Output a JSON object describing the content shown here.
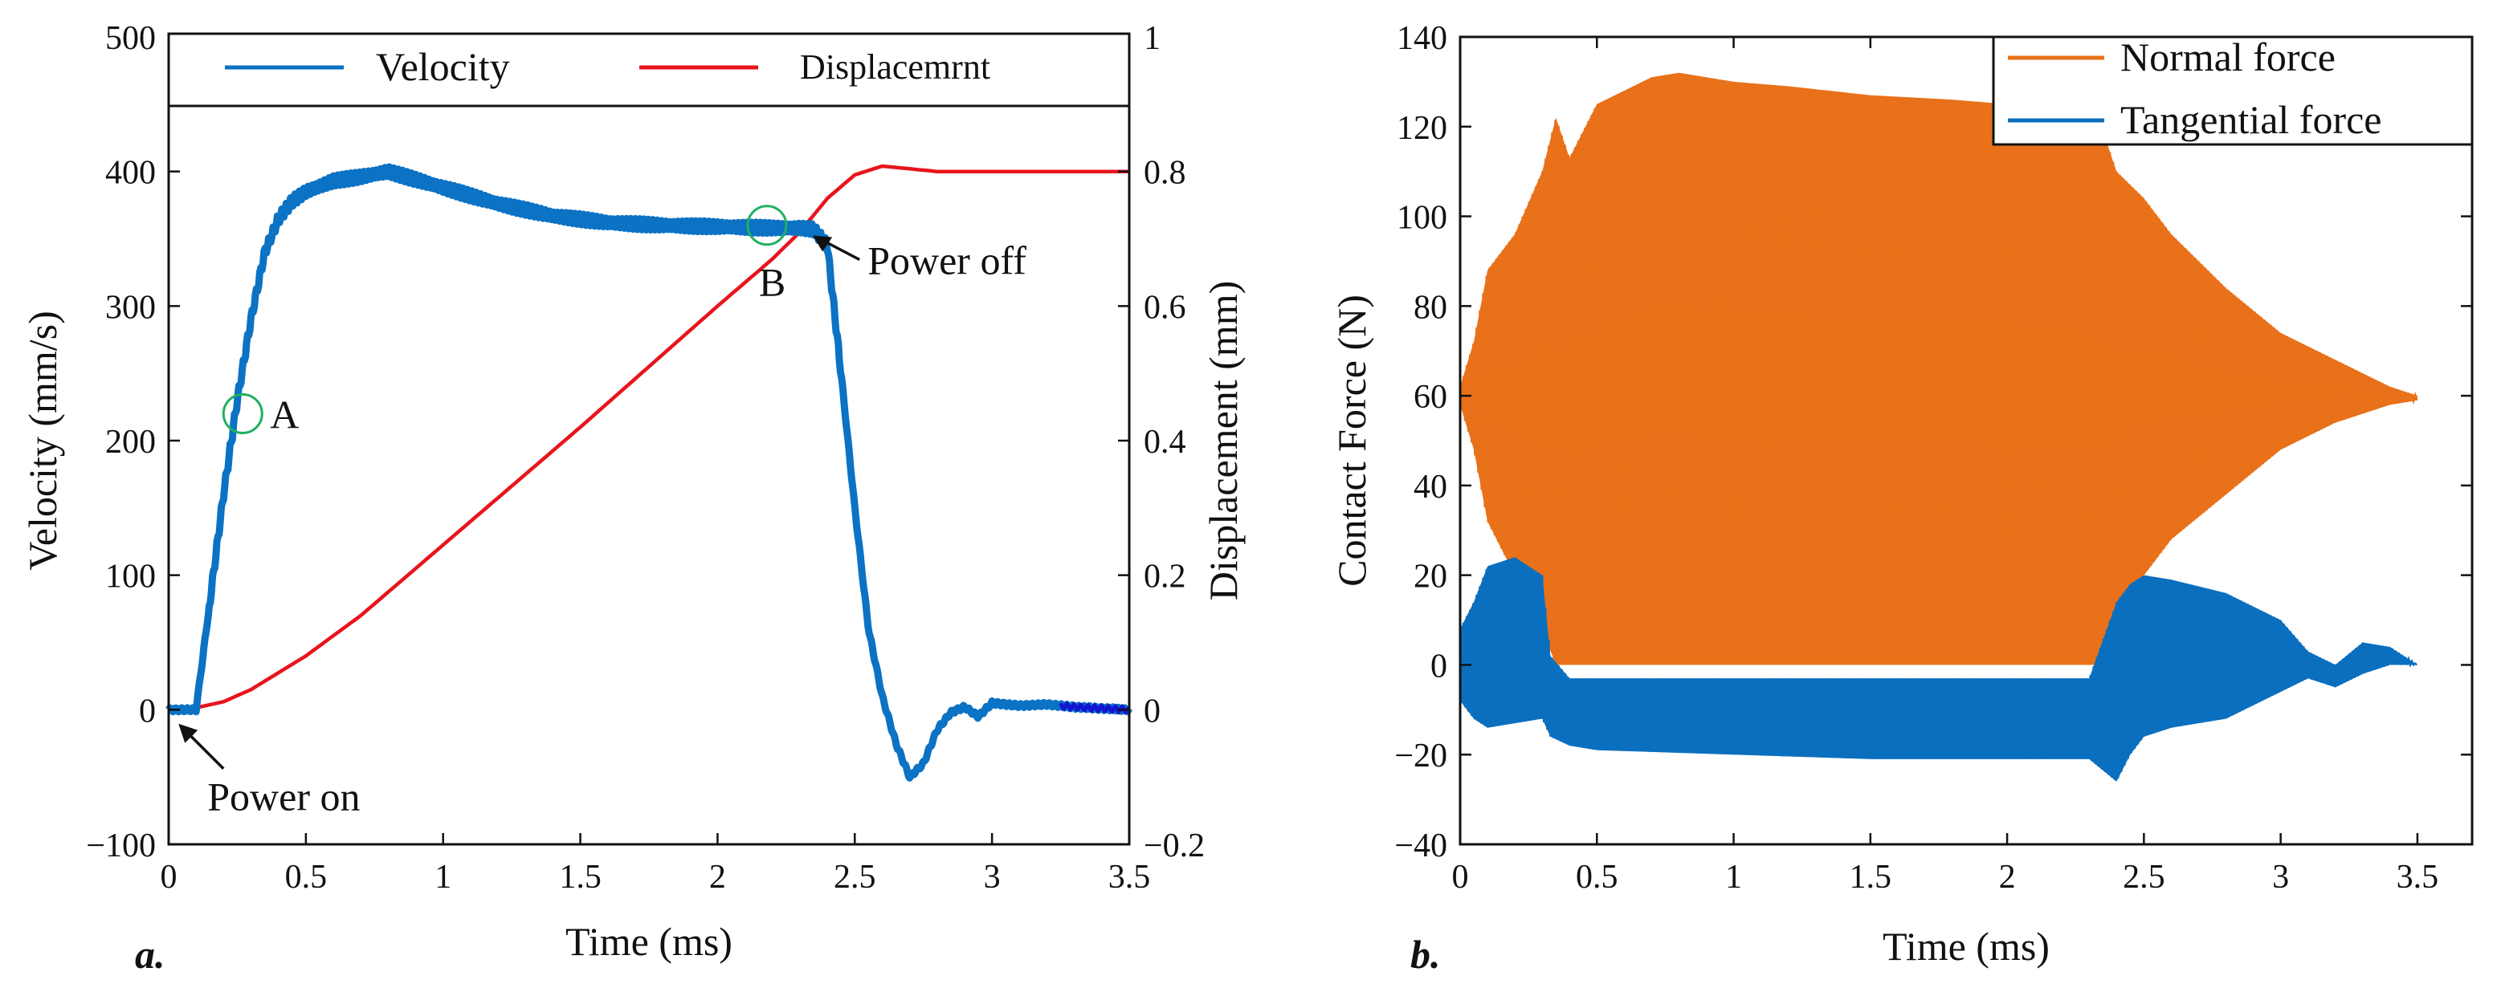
{
  "colors": {
    "velocity": "#0b72c4",
    "displacement": "#e8141c",
    "velocity_tail": "#1414d2",
    "normal_force": "#e8711a",
    "tangential_force": "#0b6fbf",
    "marker": "#1fb060",
    "axis": "#111111"
  },
  "chart_data": [
    {
      "type": "line",
      "panel_label": "a.",
      "xlabel": "Time (ms)",
      "ylabel_left": "Velocity (mm/s)",
      "ylabel_right": "Displacement (mm)",
      "xlim": [
        0,
        3.5
      ],
      "ylim_left": [
        -100,
        500
      ],
      "ylim_right": [
        -0.2,
        1.0
      ],
      "x_ticks": [
        "0",
        "0.5",
        "1",
        "1.5",
        "2",
        "2.5",
        "3",
        "3.5"
      ],
      "y_left_ticks": [
        "−100",
        "0",
        "100",
        "200",
        "300",
        "400",
        "500"
      ],
      "y_right_ticks": [
        "−0.2",
        "0",
        "0.2",
        "0.4",
        "0.6",
        "0.8",
        "1"
      ],
      "legend_position": "top",
      "series": [
        {
          "name": "Velocity",
          "axis": "left",
          "x": [
            0,
            0.1,
            0.15,
            0.2,
            0.25,
            0.3,
            0.35,
            0.4,
            0.45,
            0.5,
            0.6,
            0.7,
            0.8,
            0.9,
            1.0,
            1.2,
            1.4,
            1.6,
            1.8,
            2.0,
            2.2,
            2.3,
            2.35,
            2.4,
            2.45,
            2.5,
            2.55,
            2.6,
            2.65,
            2.7,
            2.75,
            2.8,
            2.85,
            2.9,
            2.95,
            3.0,
            3.1,
            3.2,
            3.3,
            3.4,
            3.5
          ],
          "values": [
            0,
            0,
            80,
            160,
            230,
            290,
            340,
            365,
            378,
            385,
            393,
            396,
            400,
            394,
            388,
            376,
            367,
            362,
            360,
            359,
            358,
            358,
            357,
            345,
            250,
            150,
            60,
            10,
            -25,
            -50,
            -40,
            -15,
            -2,
            2,
            -5,
            5,
            3,
            4,
            2,
            1,
            0
          ]
        },
        {
          "name": "Displacemrnt",
          "axis": "right",
          "x": [
            0,
            0.1,
            0.2,
            0.3,
            0.4,
            0.5,
            0.7,
            1.0,
            1.5,
            2.0,
            2.2,
            2.3,
            2.4,
            2.5,
            2.6,
            2.8,
            3.0,
            3.5
          ],
          "values": [
            0,
            0.003,
            0.012,
            0.03,
            0.055,
            0.08,
            0.14,
            0.245,
            0.42,
            0.6,
            0.67,
            0.71,
            0.76,
            0.795,
            0.808,
            0.8,
            0.8,
            0.8
          ]
        }
      ],
      "annotations": [
        {
          "text": "A",
          "x": 0.27,
          "y": 220
        },
        {
          "text": "B",
          "x": 2.18,
          "y": 360
        },
        {
          "text": "Power off",
          "x": 2.33,
          "y": 350
        },
        {
          "text": "Power on",
          "x": 0.03,
          "y": -8
        }
      ]
    },
    {
      "type": "area",
      "panel_label": "b.",
      "xlabel": "Time (ms)",
      "ylabel": "Contact Force (N)",
      "xlim": [
        0,
        3.5
      ],
      "ylim": [
        -40,
        140
      ],
      "x_ticks": [
        "0",
        "0.5",
        "1",
        "1.5",
        "2",
        "2.5",
        "3",
        "3.5"
      ],
      "y_ticks": [
        "−40",
        "−20",
        "0",
        "20",
        "40",
        "60",
        "80",
        "100",
        "120",
        "140"
      ],
      "legend_position": "top-right",
      "series": [
        {
          "name": "Normal force",
          "x": [
            0,
            0.05,
            0.1,
            0.2,
            0.3,
            0.35,
            0.4,
            0.5,
            0.6,
            0.7,
            0.8,
            1.0,
            1.2,
            1.5,
            1.8,
            2.0,
            2.2,
            2.35,
            2.4,
            2.5,
            2.6,
            2.8,
            3.0,
            3.2,
            3.3,
            3.4,
            3.5
          ],
          "upper": [
            62,
            72,
            88,
            96,
            110,
            122,
            113,
            125,
            128,
            131,
            132,
            130,
            129,
            127,
            126,
            125,
            123,
            119,
            110,
            104,
            96,
            84,
            74,
            68,
            65,
            62,
            60
          ],
          "lower": [
            58,
            48,
            32,
            20,
            8,
            0,
            0,
            0,
            0,
            0,
            0,
            0,
            0,
            0,
            0,
            0,
            0,
            0,
            10,
            20,
            28,
            38,
            48,
            54,
            56,
            58,
            59
          ]
        },
        {
          "name": "Tangential force",
          "x": [
            0,
            0.05,
            0.1,
            0.2,
            0.3,
            0.33,
            0.4,
            0.5,
            1.0,
            1.5,
            2.0,
            2.3,
            2.4,
            2.45,
            2.5,
            2.6,
            2.8,
            3.0,
            3.1,
            3.2,
            3.3,
            3.4,
            3.5
          ],
          "upper": [
            8,
            14,
            22,
            24,
            20,
            2,
            -3,
            -3,
            -3,
            -3,
            -3,
            -3,
            14,
            18,
            20,
            19,
            16,
            10,
            3,
            0,
            5,
            4,
            0
          ],
          "lower": [
            -8,
            -12,
            -14,
            -13,
            -12,
            -16,
            -18,
            -19,
            -20,
            -21,
            -21,
            -21,
            -26,
            -20,
            -16,
            -14,
            -12,
            -6,
            -3,
            -5,
            -2,
            0,
            0
          ]
        }
      ]
    }
  ]
}
